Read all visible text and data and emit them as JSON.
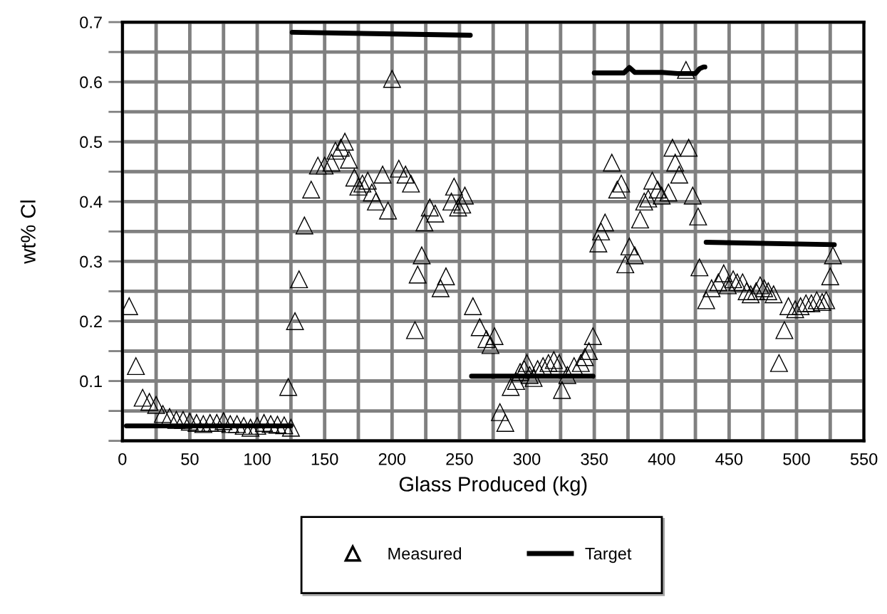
{
  "chart_data": {
    "type": "scatter",
    "xlabel": "Glass Produced (kg)",
    "ylabel": "wt% Cl",
    "xlim": [
      0,
      550
    ],
    "ylim": [
      0,
      0.7
    ],
    "xticks": [
      0,
      {
        "value": 25,
        "label": null
      },
      50,
      {
        "value": 75,
        "label": null
      },
      100,
      {
        "value": 125,
        "label": null
      },
      150,
      {
        "value": 175,
        "label": null
      },
      200,
      {
        "value": 225,
        "label": null
      },
      250,
      {
        "value": 275,
        "label": null
      },
      300,
      {
        "value": 325,
        "label": null
      },
      350,
      {
        "value": 375,
        "label": null
      },
      400,
      {
        "value": 425,
        "label": null
      },
      450,
      {
        "value": 475,
        "label": null
      },
      500,
      {
        "value": 525,
        "label": null
      },
      550
    ],
    "yticks": [
      {
        "value": 0,
        "label": null
      },
      {
        "value": 0.05,
        "label": null
      },
      0.1,
      {
        "value": 0.15,
        "label": null
      },
      0.2,
      {
        "value": 0.25,
        "label": null
      },
      0.3,
      {
        "value": 0.35,
        "label": null
      },
      0.4,
      {
        "value": 0.45,
        "label": null
      },
      0.5,
      {
        "value": 0.55,
        "label": null
      },
      0.6,
      {
        "value": 0.65,
        "label": null
      },
      0.7
    ],
    "grid": true,
    "legend": "bottom",
    "series": [
      {
        "name": "Measured",
        "marker": "triangle",
        "color": "#000000",
        "x": [
          5,
          10,
          15,
          20,
          25,
          30,
          35,
          40,
          45,
          50,
          55,
          60,
          65,
          70,
          75,
          80,
          85,
          90,
          95,
          100,
          105,
          110,
          115,
          120,
          125,
          123,
          128,
          131,
          135,
          140,
          145,
          150,
          155,
          158,
          162,
          165,
          168,
          172,
          175,
          178,
          182,
          185,
          188,
          193,
          197,
          200,
          205,
          210,
          214,
          217,
          219,
          222,
          224,
          228,
          232,
          236,
          240,
          244,
          246,
          249,
          252,
          254,
          260,
          265,
          270,
          273,
          276,
          280,
          284,
          288,
          292,
          295,
          298,
          300,
          302,
          305,
          308,
          312,
          316,
          320,
          324,
          326,
          330,
          335,
          340,
          343,
          346,
          349,
          353,
          355,
          358,
          363,
          367,
          370,
          373,
          376,
          380,
          384,
          387,
          390,
          393,
          397,
          400,
          405,
          408,
          410,
          413,
          418,
          420,
          423,
          427,
          428,
          433,
          437,
          442,
          446,
          449,
          453,
          456,
          460,
          463,
          466,
          470,
          473,
          476,
          479,
          483,
          487,
          491,
          494,
          499,
          503,
          507,
          511,
          515,
          519,
          522,
          525,
          527
        ],
        "values": [
          0.225,
          0.125,
          0.072,
          0.065,
          0.06,
          0.045,
          0.04,
          0.035,
          0.035,
          0.032,
          0.03,
          0.028,
          0.03,
          0.03,
          0.033,
          0.028,
          0.028,
          0.025,
          0.022,
          0.025,
          0.03,
          0.028,
          0.027,
          0.026,
          0.022,
          0.09,
          0.2,
          0.27,
          0.36,
          0.42,
          0.46,
          0.46,
          0.465,
          0.485,
          0.49,
          0.5,
          0.47,
          0.44,
          0.425,
          0.43,
          0.435,
          0.415,
          0.4,
          0.445,
          0.385,
          0.605,
          0.455,
          0.445,
          0.43,
          0.185,
          0.278,
          0.31,
          0.365,
          0.39,
          0.38,
          0.255,
          0.275,
          0.4,
          0.425,
          0.39,
          0.395,
          0.41,
          0.225,
          0.19,
          0.17,
          0.16,
          0.175,
          0.048,
          0.03,
          0.09,
          0.1,
          0.115,
          0.12,
          0.13,
          0.11,
          0.105,
          0.12,
          0.125,
          0.13,
          0.135,
          0.13,
          0.085,
          0.11,
          0.125,
          0.13,
          0.14,
          0.15,
          0.175,
          0.33,
          0.35,
          0.365,
          0.465,
          0.42,
          0.43,
          0.295,
          0.325,
          0.31,
          0.37,
          0.4,
          0.405,
          0.435,
          0.42,
          0.41,
          0.415,
          0.49,
          0.465,
          0.445,
          0.62,
          0.49,
          0.41,
          0.375,
          0.29,
          0.235,
          0.255,
          0.265,
          0.28,
          0.26,
          0.27,
          0.265,
          0.265,
          0.25,
          0.245,
          0.25,
          0.26,
          0.255,
          0.25,
          0.245,
          0.13,
          0.185,
          0.225,
          0.22,
          0.225,
          0.23,
          0.23,
          0.235,
          0.232,
          0.235,
          0.275,
          0.31
        ]
      },
      {
        "name": "Target",
        "type": "line",
        "marker": "none",
        "line_style": "solid",
        "color": "#000000",
        "x": [
          3,
          125,
          125.5,
          126,
          258,
          258.5,
          259,
          349,
          349.5,
          350,
          372,
          376,
          380,
          400,
          412,
          425,
          428,
          431,
          432,
          432.5,
          433,
          528
        ],
        "values": [
          0.025,
          0.025,
          null,
          0.683,
          0.678,
          null,
          0.108,
          0.108,
          null,
          0.615,
          0.615,
          0.624,
          0.616,
          0.616,
          0.614,
          0.614,
          0.622,
          0.625,
          0.625,
          null,
          0.332,
          0.328
        ]
      }
    ]
  }
}
